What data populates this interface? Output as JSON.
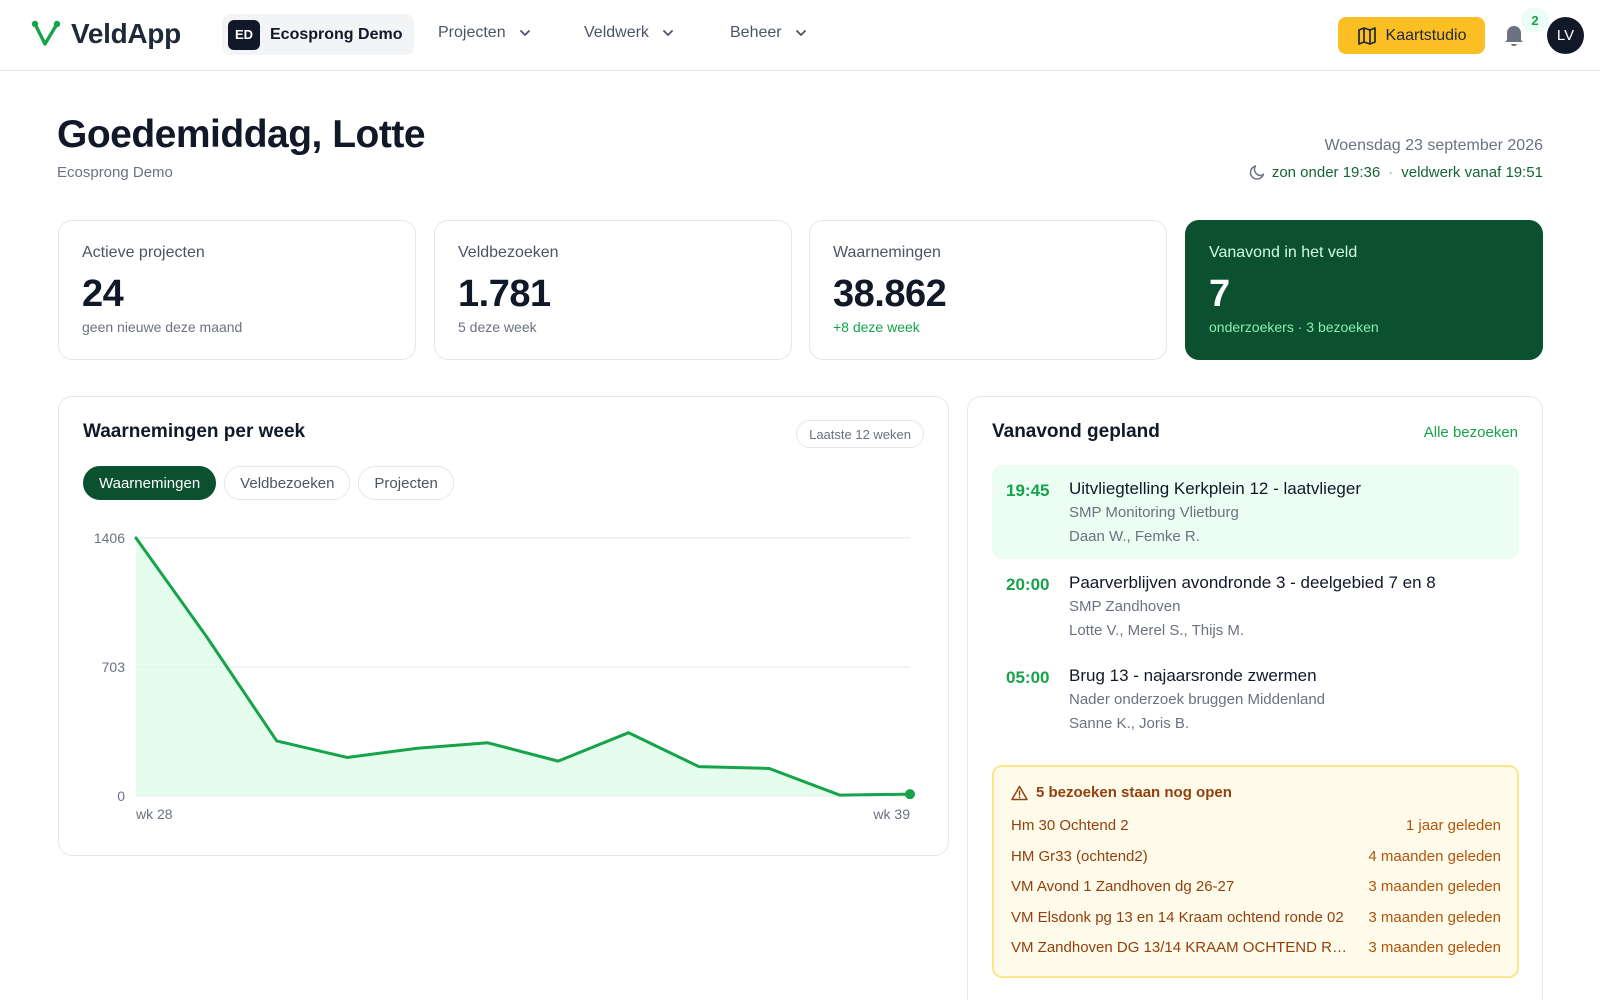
{
  "app": {
    "name": "VeldApp"
  },
  "org": {
    "initials": "ED",
    "name": "Ecosprong Demo"
  },
  "nav": [
    {
      "label": "Projecten"
    },
    {
      "label": "Veldwerk"
    },
    {
      "label": "Beheer"
    }
  ],
  "header_actions": {
    "kaartstudio_label": "Kaartstudio",
    "notifications_count": "2",
    "user_initials": "LV"
  },
  "greeting": {
    "title": "Goedemiddag, Lotte",
    "subtitle": "Ecosprong Demo",
    "date": "Woensdag 23 september 2026",
    "sunset": "zon onder 19:36",
    "fieldwork": "veldwerk vanaf 19:51"
  },
  "stats": [
    {
      "label": "Actieve projecten",
      "value": "24",
      "sub": "geen nieuwe deze maand"
    },
    {
      "label": "Veldbezoeken",
      "value": "1.781",
      "sub": "5 deze week"
    },
    {
      "label": "Waarnemingen",
      "value": "38.862",
      "sub": "+8 deze week"
    },
    {
      "label": "Vanavond in het veld",
      "value": "7",
      "sub": "onderzoekers · 3 bezoeken"
    }
  ],
  "chart_panel": {
    "title": "Waarnemingen per week",
    "range_label": "Laatste 12 weken",
    "tabs": [
      "Waarnemingen",
      "Veldbezoeken",
      "Projecten"
    ],
    "active_tab": "Waarnemingen"
  },
  "chart_data": {
    "type": "area",
    "title": "Waarnemingen per week",
    "x": [
      "wk 28",
      "wk 29",
      "wk 30",
      "wk 31",
      "wk 32",
      "wk 33",
      "wk 34",
      "wk 35",
      "wk 36",
      "wk 37",
      "wk 38",
      "wk 39"
    ],
    "x_tick_labels": [
      "wk 28",
      "wk 39"
    ],
    "values": [
      1406,
      870,
      300,
      210,
      260,
      290,
      190,
      345,
      160,
      150,
      5,
      10
    ],
    "ylim": [
      0,
      1406
    ],
    "y_ticks": [
      0,
      703,
      1406
    ],
    "grid": true,
    "colors": {
      "line": "#16a34a",
      "fill": "#dcfce7"
    }
  },
  "planned": {
    "title": "Vanavond gepland",
    "link": "Alle bezoeken",
    "visits": [
      {
        "time": "19:45",
        "title": "Uitvliegtelling Kerkplein 12 - laatvlieger",
        "project": "SMP Monitoring Vlietburg",
        "people": "Daan W., Femke R."
      },
      {
        "time": "20:00",
        "title": "Paarverblijven avondronde 3 - deelgebied 7 en 8",
        "project": "SMP Zandhoven",
        "people": "Lotte V., Merel S., Thijs M."
      },
      {
        "time": "05:00",
        "title": "Brug 13 - najaarsronde zwermen",
        "project": "Nader onderzoek bruggen Middenland",
        "people": "Sanne K., Joris B."
      }
    ],
    "open": {
      "heading": "5 bezoeken staan nog open",
      "items": [
        {
          "name": "Hm 30 Ochtend 2",
          "age": "1 jaar geleden"
        },
        {
          "name": "HM Gr33 (ochtend2)",
          "age": "4 maanden geleden"
        },
        {
          "name": "VM Avond 1 Zandhoven dg 26-27",
          "age": "3 maanden geleden"
        },
        {
          "name": "VM Elsdonk pg 13 en 14 Kraam ochtend ronde 02",
          "age": "3 maanden geleden"
        },
        {
          "name": "VM Zandhoven DG 13/14 KRAAM OCHTEND RO...",
          "age": "3 maanden geleden"
        }
      ]
    }
  }
}
